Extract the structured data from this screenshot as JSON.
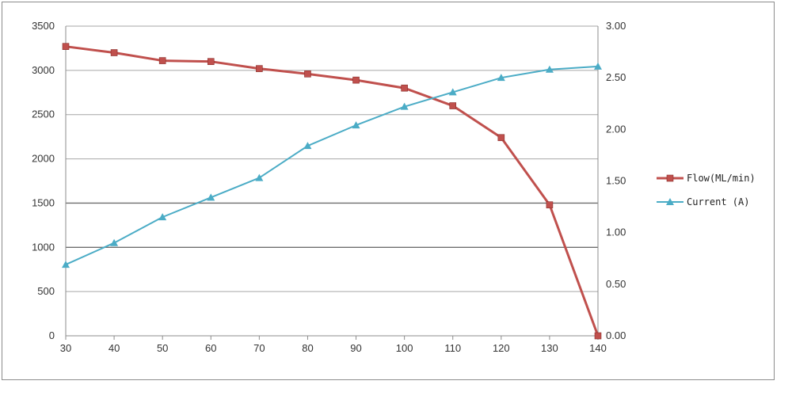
{
  "chart_data": {
    "type": "line",
    "title": "",
    "xlabel": "",
    "ylabel": "",
    "x": [
      30,
      40,
      50,
      60,
      70,
      80,
      90,
      100,
      110,
      120,
      130,
      140
    ],
    "x_ticks": [
      "30",
      "40",
      "50",
      "60",
      "70",
      "80",
      "90",
      "100",
      "110",
      "120",
      "130",
      "140"
    ],
    "xlim": [
      30,
      140
    ],
    "ylim_left": [
      0,
      3500
    ],
    "ylim_right": [
      0,
      3
    ],
    "left_ticks": [
      "0",
      "500",
      "1000",
      "1500",
      "2000",
      "2500",
      "3000",
      "3500"
    ],
    "right_ticks": [
      "0.00",
      "0.50",
      "1.00",
      "1.50",
      "2.00",
      "2.50",
      "3.00"
    ],
    "grid": true,
    "legend_position": "right",
    "series": [
      {
        "name": "Flow(ML/min)",
        "axis": "left",
        "marker": "square",
        "color": "#c0504d",
        "values": [
          3270,
          3200,
          3110,
          3100,
          3020,
          2960,
          2890,
          2800,
          2600,
          2240,
          1480,
          0
        ]
      },
      {
        "name": "Current (A)",
        "axis": "right",
        "marker": "triangle",
        "color": "#4bacc6",
        "values": [
          0.69,
          0.9,
          1.15,
          1.34,
          1.53,
          1.84,
          2.04,
          2.22,
          2.36,
          2.5,
          2.58,
          2.61
        ]
      }
    ]
  }
}
